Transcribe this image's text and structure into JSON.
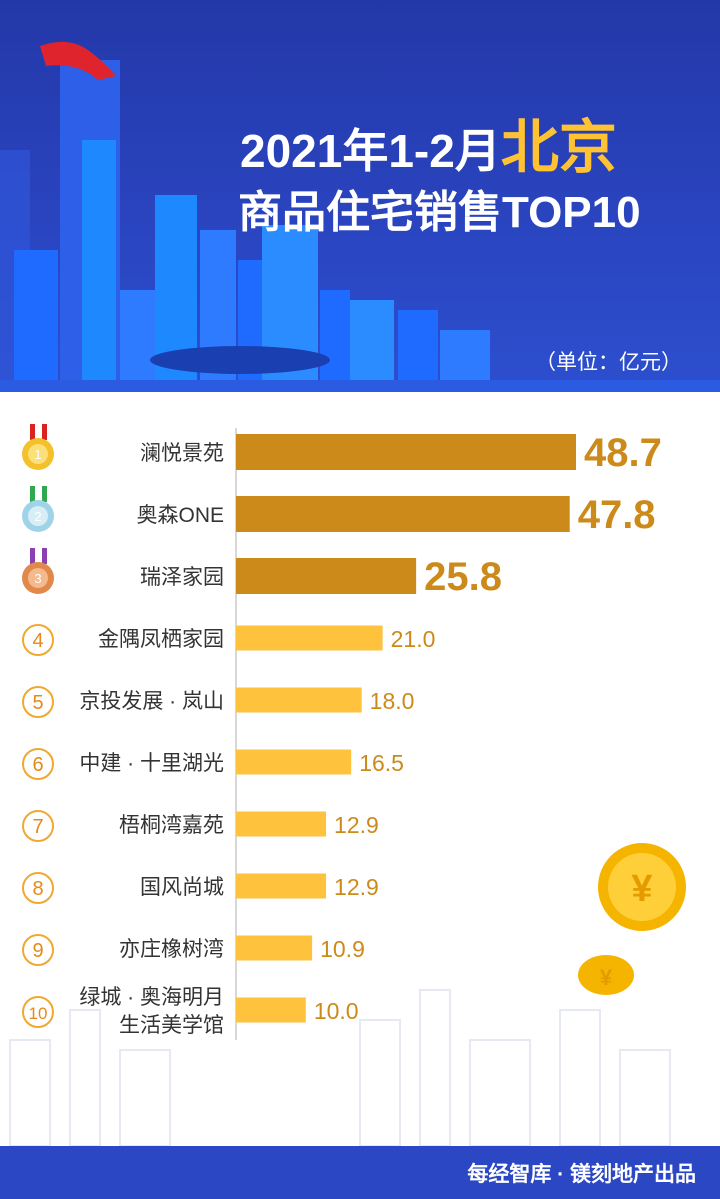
{
  "header": {
    "title_prefix": "2021年1-2月",
    "title_city": "北京",
    "title_line2": "商品住宅销售TOP10",
    "unit": "（单位：亿元）"
  },
  "footer": {
    "credit": "每经智库 · 镁刻地产出品"
  },
  "colors": {
    "header_blue": "#2a44bf",
    "top3_bar": "#cc8a1a",
    "other_bar": "#ffc23d",
    "footer_blue": "#2b47c4",
    "accent_gold": "#ffc233"
  },
  "chart_data": {
    "type": "bar",
    "orientation": "horizontal",
    "unit": "亿元",
    "categories": [
      [
        "澜悦景苑"
      ],
      [
        "奥森ONE"
      ],
      [
        "瑞泽家园"
      ],
      [
        "金隅凤栖家园"
      ],
      [
        "京投发展 · 岚山"
      ],
      [
        "中建 · 十里湖光"
      ],
      [
        "梧桐湾嘉苑"
      ],
      [
        "国风尚城"
      ],
      [
        "亦庄橡树湾"
      ],
      [
        "绿城 · 奥海明月",
        "生活美学馆"
      ]
    ],
    "ranks": [
      "1",
      "2",
      "3",
      "4",
      "5",
      "6",
      "7",
      "8",
      "9",
      "10"
    ],
    "values": [
      48.7,
      47.8,
      25.8,
      21.0,
      18.0,
      16.5,
      12.9,
      12.9,
      10.9,
      10.0
    ],
    "value_labels": [
      "48.7",
      "47.8",
      "25.8",
      "21.0",
      "18.0",
      "16.5",
      "12.9",
      "12.9",
      "10.9",
      "10.0"
    ]
  }
}
